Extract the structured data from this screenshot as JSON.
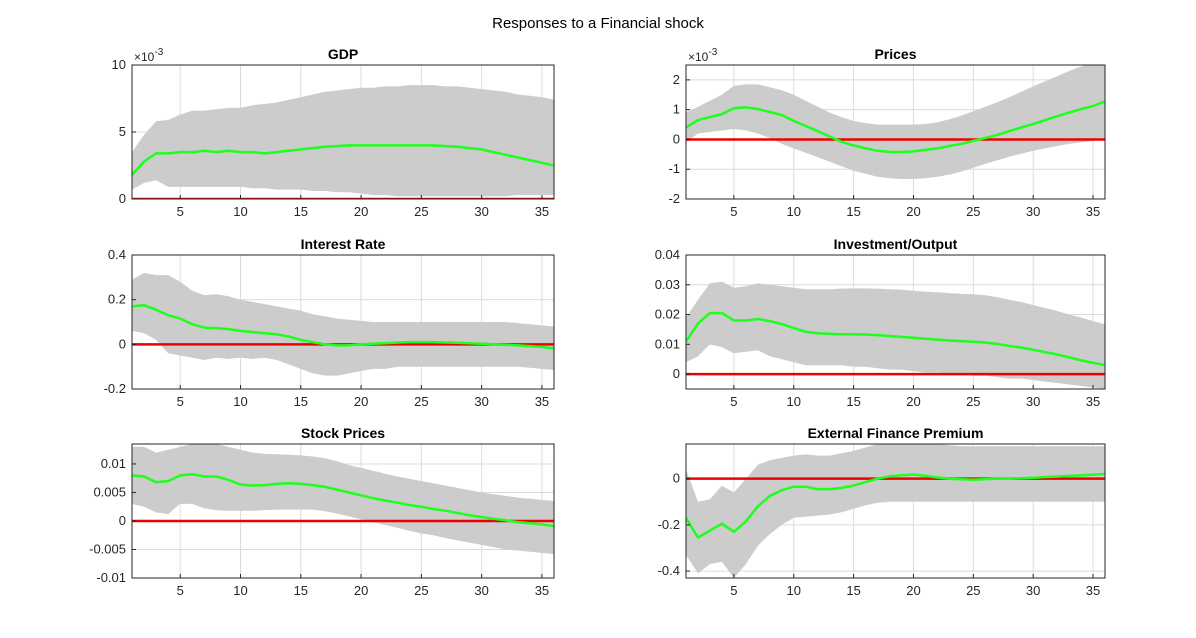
{
  "figure": {
    "title": "Responses to a Financial shock",
    "colors": {
      "band": "#cccccc",
      "response": "#1eff1e",
      "zero": "#ee0000"
    }
  },
  "chart_data": [
    {
      "type": "area",
      "title": "GDP",
      "xlim": [
        1,
        36
      ],
      "ylim": [
        0,
        10
      ],
      "exponent": "×10^-3",
      "exp_base": "×10",
      "exp_power": "-3",
      "xticks": [
        5,
        10,
        15,
        20,
        25,
        30,
        35
      ],
      "yticks": [
        0,
        5,
        10
      ],
      "ytick_labels": [
        "0",
        "5",
        "10"
      ],
      "grid": true,
      "x": [
        1,
        2,
        3,
        4,
        5,
        6,
        7,
        8,
        9,
        10,
        11,
        12,
        13,
        14,
        15,
        16,
        17,
        18,
        19,
        20,
        21,
        22,
        23,
        24,
        25,
        26,
        27,
        28,
        29,
        30,
        31,
        32,
        33,
        34,
        35,
        36
      ],
      "median": [
        1.8,
        2.8,
        3.4,
        3.4,
        3.5,
        3.5,
        3.6,
        3.5,
        3.6,
        3.5,
        3.5,
        3.4,
        3.5,
        3.6,
        3.7,
        3.8,
        3.9,
        3.95,
        4.0,
        4.0,
        4.0,
        4.0,
        4.0,
        4.0,
        4.0,
        4.0,
        3.95,
        3.9,
        3.8,
        3.7,
        3.5,
        3.3,
        3.1,
        2.9,
        2.7,
        2.5
      ],
      "lower": [
        0.7,
        1.2,
        1.4,
        0.9,
        0.9,
        0.9,
        0.9,
        0.9,
        0.9,
        0.9,
        0.8,
        0.8,
        0.7,
        0.7,
        0.7,
        0.6,
        0.6,
        0.5,
        0.5,
        0.4,
        0.3,
        0.3,
        0.2,
        0.2,
        0.2,
        0.2,
        0.2,
        0.2,
        0.2,
        0.2,
        0.2,
        0.2,
        0.3,
        0.3,
        0.3,
        0.3
      ],
      "upper": [
        3.5,
        4.8,
        5.8,
        5.9,
        6.3,
        6.6,
        6.6,
        6.7,
        6.8,
        6.8,
        7.0,
        7.1,
        7.2,
        7.4,
        7.6,
        7.8,
        8.0,
        8.1,
        8.2,
        8.3,
        8.3,
        8.4,
        8.4,
        8.5,
        8.5,
        8.5,
        8.4,
        8.4,
        8.3,
        8.2,
        8.1,
        8.0,
        7.8,
        7.7,
        7.6,
        7.4
      ]
    },
    {
      "type": "area",
      "title": "Prices",
      "xlim": [
        1,
        36
      ],
      "ylim": [
        -2,
        2.5
      ],
      "exponent": "×10^-3",
      "exp_base": "×10",
      "exp_power": "-3",
      "xticks": [
        5,
        10,
        15,
        20,
        25,
        30,
        35
      ],
      "yticks": [
        -2,
        -1,
        0,
        1,
        2
      ],
      "ytick_labels": [
        "-2",
        "-1",
        "0",
        "1",
        "2"
      ],
      "grid": true,
      "x": [
        1,
        2,
        3,
        4,
        5,
        6,
        7,
        8,
        9,
        10,
        11,
        12,
        13,
        14,
        15,
        16,
        17,
        18,
        19,
        20,
        21,
        22,
        23,
        24,
        25,
        26,
        27,
        28,
        29,
        30,
        31,
        32,
        33,
        34,
        35,
        36
      ],
      "median": [
        0.4,
        0.65,
        0.75,
        0.85,
        1.05,
        1.08,
        1.02,
        0.92,
        0.82,
        0.62,
        0.45,
        0.28,
        0.1,
        -0.08,
        -0.2,
        -0.3,
        -0.38,
        -0.42,
        -0.42,
        -0.4,
        -0.35,
        -0.3,
        -0.22,
        -0.15,
        -0.05,
        0.05,
        0.15,
        0.28,
        0.4,
        0.52,
        0.65,
        0.78,
        0.9,
        1.02,
        1.12,
        1.28
      ],
      "lower": [
        -0.1,
        0.2,
        0.25,
        0.3,
        0.35,
        0.3,
        0.2,
        0.05,
        -0.15,
        -0.3,
        -0.45,
        -0.6,
        -0.75,
        -0.9,
        -1.05,
        -1.15,
        -1.25,
        -1.3,
        -1.33,
        -1.33,
        -1.3,
        -1.25,
        -1.18,
        -1.08,
        -0.95,
        -0.82,
        -0.7,
        -0.58,
        -0.48,
        -0.38,
        -0.3,
        -0.22,
        -0.15,
        -0.1,
        -0.05,
        0.0
      ],
      "upper": [
        0.9,
        1.1,
        1.3,
        1.5,
        1.8,
        1.85,
        1.85,
        1.75,
        1.65,
        1.5,
        1.3,
        1.1,
        0.9,
        0.75,
        0.62,
        0.55,
        0.5,
        0.5,
        0.5,
        0.5,
        0.52,
        0.58,
        0.68,
        0.8,
        0.95,
        1.1,
        1.25,
        1.42,
        1.6,
        1.78,
        1.95,
        2.12,
        2.3,
        2.45,
        2.6,
        2.75
      ]
    },
    {
      "type": "area",
      "title": "Interest Rate",
      "xlim": [
        1,
        36
      ],
      "ylim": [
        -0.2,
        0.4
      ],
      "xticks": [
        5,
        10,
        15,
        20,
        25,
        30,
        35
      ],
      "yticks": [
        -0.2,
        0,
        0.2,
        0.4
      ],
      "ytick_labels": [
        "-0.2",
        "0",
        "0.2",
        "0.4"
      ],
      "grid": true,
      "x": [
        1,
        2,
        3,
        4,
        5,
        6,
        7,
        8,
        9,
        10,
        11,
        12,
        13,
        14,
        15,
        16,
        17,
        18,
        19,
        20,
        21,
        22,
        23,
        24,
        25,
        26,
        27,
        28,
        29,
        30,
        31,
        32,
        33,
        34,
        35,
        36
      ],
      "median": [
        0.17,
        0.175,
        0.155,
        0.13,
        0.115,
        0.09,
        0.075,
        0.072,
        0.068,
        0.06,
        0.055,
        0.05,
        0.045,
        0.035,
        0.02,
        0.01,
        0.0,
        -0.005,
        -0.005,
        0.0,
        0.003,
        0.005,
        0.008,
        0.01,
        0.01,
        0.01,
        0.008,
        0.007,
        0.005,
        0.003,
        0.0,
        -0.002,
        -0.005,
        -0.008,
        -0.012,
        -0.018
      ],
      "lower": [
        0.06,
        0.05,
        0.02,
        -0.04,
        -0.05,
        -0.06,
        -0.07,
        -0.06,
        -0.065,
        -0.06,
        -0.065,
        -0.06,
        -0.07,
        -0.09,
        -0.11,
        -0.13,
        -0.14,
        -0.14,
        -0.13,
        -0.12,
        -0.11,
        -0.11,
        -0.1,
        -0.1,
        -0.1,
        -0.1,
        -0.1,
        -0.1,
        -0.1,
        -0.1,
        -0.1,
        -0.1,
        -0.1,
        -0.105,
        -0.11,
        -0.115
      ],
      "upper": [
        0.29,
        0.32,
        0.31,
        0.31,
        0.28,
        0.24,
        0.22,
        0.225,
        0.215,
        0.2,
        0.19,
        0.18,
        0.17,
        0.16,
        0.15,
        0.135,
        0.125,
        0.115,
        0.11,
        0.105,
        0.1,
        0.1,
        0.1,
        0.1,
        0.1,
        0.1,
        0.1,
        0.1,
        0.1,
        0.1,
        0.1,
        0.1,
        0.095,
        0.09,
        0.085,
        0.08
      ]
    },
    {
      "type": "area",
      "title": "Investment/Output",
      "xlim": [
        1,
        36
      ],
      "ylim": [
        -0.005,
        0.04
      ],
      "xticks": [
        5,
        10,
        15,
        20,
        25,
        30,
        35
      ],
      "yticks": [
        0,
        0.01,
        0.02,
        0.03,
        0.04
      ],
      "ytick_labels": [
        "0",
        "0.01",
        "0.02",
        "0.03",
        "0.04"
      ],
      "grid": true,
      "x": [
        1,
        2,
        3,
        4,
        5,
        6,
        7,
        8,
        9,
        10,
        11,
        12,
        13,
        14,
        15,
        16,
        17,
        18,
        19,
        20,
        21,
        22,
        23,
        24,
        25,
        26,
        27,
        28,
        29,
        30,
        31,
        32,
        33,
        34,
        35,
        36
      ],
      "median": [
        0.011,
        0.017,
        0.0205,
        0.0205,
        0.018,
        0.018,
        0.0185,
        0.0178,
        0.0168,
        0.0155,
        0.0142,
        0.0137,
        0.0135,
        0.0134,
        0.0134,
        0.0133,
        0.0131,
        0.0128,
        0.0125,
        0.0122,
        0.0119,
        0.0116,
        0.0113,
        0.0111,
        0.0109,
        0.0106,
        0.0101,
        0.0095,
        0.0089,
        0.0082,
        0.0074,
        0.0066,
        0.0056,
        0.0046,
        0.0038,
        0.003
      ],
      "lower": [
        0.004,
        0.006,
        0.01,
        0.009,
        0.007,
        0.0075,
        0.008,
        0.006,
        0.005,
        0.004,
        0.003,
        0.003,
        0.003,
        0.003,
        0.0025,
        0.0025,
        0.002,
        0.0015,
        0.0015,
        0.001,
        0.0005,
        0.0005,
        0.0,
        0.0,
        -0.0005,
        -0.0005,
        -0.001,
        -0.0015,
        -0.0015,
        -0.002,
        -0.0025,
        -0.003,
        -0.0035,
        -0.004,
        -0.0045,
        -0.005
      ],
      "upper": [
        0.019,
        0.025,
        0.0305,
        0.031,
        0.029,
        0.0295,
        0.0305,
        0.03,
        0.0295,
        0.029,
        0.0285,
        0.0285,
        0.0285,
        0.0287,
        0.0288,
        0.0288,
        0.0287,
        0.0285,
        0.0283,
        0.028,
        0.0277,
        0.0275,
        0.0272,
        0.027,
        0.0268,
        0.0265,
        0.0258,
        0.025,
        0.0242,
        0.0232,
        0.0222,
        0.0212,
        0.02,
        0.019,
        0.0178,
        0.0168
      ]
    },
    {
      "type": "area",
      "title": "Stock Prices",
      "xlim": [
        1,
        36
      ],
      "ylim": [
        -0.01,
        0.0135
      ],
      "xticks": [
        5,
        10,
        15,
        20,
        25,
        30,
        35
      ],
      "yticks": [
        -0.01,
        -0.005,
        0,
        0.005,
        0.01
      ],
      "ytick_labels": [
        "-0.01",
        "-0.005",
        "0",
        "0.005",
        "0.01"
      ],
      "grid": true,
      "x": [
        1,
        2,
        3,
        4,
        5,
        6,
        7,
        8,
        9,
        10,
        11,
        12,
        13,
        14,
        15,
        16,
        17,
        18,
        19,
        20,
        21,
        22,
        23,
        24,
        25,
        26,
        27,
        28,
        29,
        30,
        31,
        32,
        33,
        34,
        35,
        36
      ],
      "median": [
        0.008,
        0.0078,
        0.0068,
        0.007,
        0.008,
        0.0082,
        0.0078,
        0.0078,
        0.0072,
        0.0064,
        0.0062,
        0.0063,
        0.0065,
        0.0066,
        0.0065,
        0.0063,
        0.006,
        0.0055,
        0.005,
        0.0045,
        0.004,
        0.0036,
        0.0032,
        0.0028,
        0.0025,
        0.0021,
        0.0018,
        0.0014,
        0.001,
        0.0007,
        0.0004,
        0.0001,
        -0.0002,
        -0.0004,
        -0.0006,
        -0.0009
      ],
      "lower": [
        0.003,
        0.0025,
        0.0015,
        0.0012,
        0.003,
        0.003,
        0.0022,
        0.0019,
        0.0018,
        0.0018,
        0.0018,
        0.0019,
        0.002,
        0.002,
        0.002,
        0.002,
        0.0017,
        0.0013,
        0.0008,
        0.0003,
        -0.0002,
        -0.0007,
        -0.0012,
        -0.0017,
        -0.0022,
        -0.0025,
        -0.003,
        -0.0034,
        -0.0038,
        -0.0042,
        -0.0046,
        -0.005,
        -0.0052,
        -0.0054,
        -0.0056,
        -0.0058
      ],
      "upper": [
        0.013,
        0.013,
        0.012,
        0.0125,
        0.013,
        0.0135,
        0.0135,
        0.0135,
        0.013,
        0.0125,
        0.012,
        0.0118,
        0.0117,
        0.0116,
        0.0115,
        0.0113,
        0.011,
        0.0105,
        0.0098,
        0.0093,
        0.0088,
        0.0083,
        0.0078,
        0.0074,
        0.007,
        0.0066,
        0.0062,
        0.0058,
        0.0054,
        0.005,
        0.0047,
        0.0044,
        0.0041,
        0.0039,
        0.0037,
        0.0035
      ]
    },
    {
      "type": "area",
      "title": "External Finance Premium",
      "xlim": [
        1,
        36
      ],
      "ylim": [
        -0.43,
        0.15
      ],
      "xticks": [
        5,
        10,
        15,
        20,
        25,
        30,
        35
      ],
      "yticks": [
        -0.4,
        -0.2,
        0
      ],
      "ytick_labels": [
        "-0.4",
        "-0.2",
        "0"
      ],
      "grid": true,
      "x": [
        1,
        2,
        3,
        4,
        5,
        6,
        7,
        8,
        9,
        10,
        11,
        12,
        13,
        14,
        15,
        16,
        17,
        18,
        19,
        20,
        21,
        22,
        23,
        24,
        25,
        26,
        27,
        28,
        29,
        30,
        31,
        32,
        33,
        34,
        35,
        36
      ],
      "median": [
        -0.17,
        -0.255,
        -0.225,
        -0.195,
        -0.23,
        -0.185,
        -0.12,
        -0.075,
        -0.05,
        -0.035,
        -0.035,
        -0.045,
        -0.045,
        -0.04,
        -0.03,
        -0.015,
        0.0,
        0.01,
        0.015,
        0.018,
        0.012,
        0.005,
        0.0,
        -0.003,
        -0.005,
        -0.002,
        0.0,
        0.0,
        0.002,
        0.004,
        0.007,
        0.009,
        0.012,
        0.014,
        0.017,
        0.02
      ],
      "lower": [
        -0.33,
        -0.41,
        -0.37,
        -0.36,
        -0.43,
        -0.37,
        -0.29,
        -0.24,
        -0.2,
        -0.17,
        -0.165,
        -0.16,
        -0.155,
        -0.145,
        -0.13,
        -0.115,
        -0.105,
        -0.1,
        -0.1,
        -0.1,
        -0.1,
        -0.1,
        -0.1,
        -0.1,
        -0.1,
        -0.1,
        -0.1,
        -0.1,
        -0.1,
        -0.1,
        -0.1,
        -0.1,
        -0.1,
        -0.1,
        -0.1,
        -0.1
      ],
      "upper": [
        0.04,
        -0.1,
        -0.09,
        -0.03,
        -0.06,
        0.0,
        0.06,
        0.08,
        0.09,
        0.1,
        0.105,
        0.1,
        0.1,
        0.11,
        0.12,
        0.135,
        0.15,
        0.16,
        0.16,
        0.16,
        0.155,
        0.15,
        0.145,
        0.14,
        0.14,
        0.14,
        0.14,
        0.14,
        0.14,
        0.14,
        0.14,
        0.14,
        0.14,
        0.14,
        0.14,
        0.14
      ]
    }
  ]
}
